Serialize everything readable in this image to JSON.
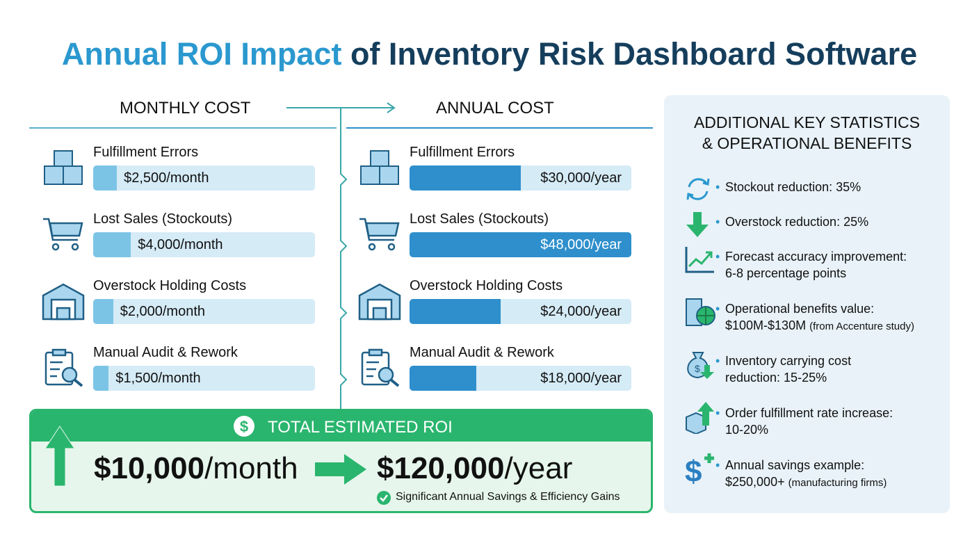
{
  "title": {
    "highlight": "Annual ROI Impact",
    "rest": " of Inventory Risk Dashboard Software"
  },
  "colors": {
    "accent_blue": "#2b98cf",
    "navy": "#153e5c",
    "monthly_fill": "#7cc4e6",
    "annual_fill": "#2e8fcc",
    "bar_bg": "#d5ebf6",
    "green": "#2ab56e"
  },
  "monthly": {
    "heading": "MONTHLY COST",
    "items": [
      {
        "label": "Fulfillment Errors",
        "amount": "$2,500",
        "unit": "/month",
        "fill": 0.107,
        "icon": "boxes-icon"
      },
      {
        "label": "Lost Sales (Stockouts)",
        "amount": "$4,000",
        "unit": "/month",
        "fill": 0.17,
        "icon": "cart-icon"
      },
      {
        "label": "Overstock Holding Costs",
        "amount": "$2,000",
        "unit": "/month",
        "fill": 0.09,
        "icon": "warehouse-icon"
      },
      {
        "label": "Manual Audit & Rework",
        "amount": "$1,500",
        "unit": "/month",
        "fill": 0.07,
        "icon": "audit-clipboard-icon"
      }
    ]
  },
  "annual": {
    "heading": "ANNUAL COST",
    "items": [
      {
        "label": "Fulfillment Errors",
        "amount": "$30,000",
        "unit": "/year",
        "fill": 0.5,
        "icon": "boxes-icon"
      },
      {
        "label": "Lost Sales (Stockouts)",
        "amount": "$48,000",
        "unit": "/year",
        "fill": 1.0,
        "icon": "cart-icon"
      },
      {
        "label": "Overstock Holding Costs",
        "amount": "$24,000",
        "unit": "/year",
        "fill": 0.41,
        "icon": "warehouse-icon"
      },
      {
        "label": "Manual Audit & Rework",
        "amount": "$18,000",
        "unit": "/year",
        "fill": 0.3,
        "icon": "audit-clipboard-icon"
      }
    ]
  },
  "roi": {
    "heading": "TOTAL ESTIMATED ROI",
    "monthly_amount": "$10,000",
    "monthly_unit": "/month",
    "annual_amount": "$120,000",
    "annual_unit": "/year",
    "note": "Significant Annual Savings & Efficiency Gains"
  },
  "stats": {
    "heading_line1": "ADDITIONAL KEY STATISTICS",
    "heading_line2": "& OPERATIONAL BENEFITS",
    "items": [
      {
        "line1": "Stockout reduction: 35%",
        "line2": "",
        "note": "",
        "icon": "refresh-cycle-icon"
      },
      {
        "line1": "Overstock reduction: 25%",
        "line2": "",
        "note": "",
        "icon": "down-arrow-icon"
      },
      {
        "line1": "Forecast accuracy improvement:",
        "line2": "6-8 percentage points",
        "note": "",
        "icon": "trend-chart-icon"
      },
      {
        "line1": "Operational benefits value:",
        "line2": "$100M-$130M",
        "note": "(from Accenture study)",
        "icon": "building-globe-icon"
      },
      {
        "line1": "Inventory carrying cost",
        "line2": "reduction: 15-25%",
        "note": "",
        "icon": "money-bag-down-icon"
      },
      {
        "line1": "Order fulfillment rate increase:",
        "line2": "10-20%",
        "note": "",
        "icon": "box-up-arrow-icon"
      },
      {
        "line1": "Annual savings example:",
        "line2": "$250,000+",
        "note": "(manufacturing firms)",
        "icon": "dollar-plus-icon"
      }
    ]
  }
}
